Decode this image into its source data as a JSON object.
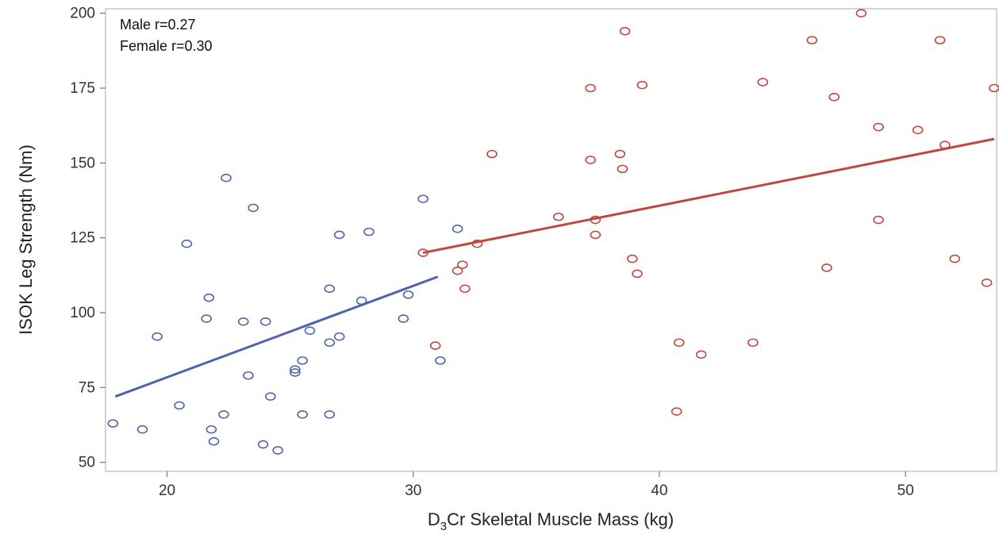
{
  "chart_data": {
    "type": "scatter",
    "title": "",
    "xlabel": "D3Cr Skeletal Muscle Mass (kg)",
    "xlabel_main": "D",
    "xlabel_sub": "3",
    "xlabel_rest": "Cr Skeletal Muscle Mass (kg)",
    "ylabel": "ISOK Leg Strength (Nm)",
    "xlim": [
      17.5,
      53.7
    ],
    "ylim": [
      47,
      201.5
    ],
    "xticks": [
      20,
      30,
      40,
      50
    ],
    "yticks": [
      50,
      75,
      100,
      125,
      150,
      175,
      200
    ],
    "grid": false,
    "annotations": [
      "Male r=0.27",
      "Female r=0.30"
    ],
    "series": [
      {
        "color": "#4f63ad",
        "fit": {
          "x": [
            17.9,
            31.0
          ],
          "y": [
            72,
            112
          ]
        },
        "points": [
          [
            17.8,
            63
          ],
          [
            19.0,
            61
          ],
          [
            19.6,
            92
          ],
          [
            20.5,
            69
          ],
          [
            20.8,
            123
          ],
          [
            21.6,
            98
          ],
          [
            21.7,
            105
          ],
          [
            21.8,
            61
          ],
          [
            21.9,
            57
          ],
          [
            22.3,
            66
          ],
          [
            22.4,
            145
          ],
          [
            23.1,
            97
          ],
          [
            23.3,
            79
          ],
          [
            23.5,
            135
          ],
          [
            23.9,
            56
          ],
          [
            24.0,
            97
          ],
          [
            24.2,
            72
          ],
          [
            24.5,
            54
          ],
          [
            25.2,
            81
          ],
          [
            25.2,
            80
          ],
          [
            25.5,
            66
          ],
          [
            25.5,
            84
          ],
          [
            25.8,
            94
          ],
          [
            26.6,
            108
          ],
          [
            26.6,
            90
          ],
          [
            26.6,
            66
          ],
          [
            27.0,
            126
          ],
          [
            27.0,
            92
          ],
          [
            27.9,
            104
          ],
          [
            28.2,
            127
          ],
          [
            29.6,
            98
          ],
          [
            29.8,
            106
          ],
          [
            30.4,
            138
          ],
          [
            31.1,
            84
          ],
          [
            31.8,
            128
          ]
        ]
      },
      {
        "color": "#c0473e",
        "fit": {
          "x": [
            30.4,
            53.6
          ],
          "y": [
            120,
            158
          ]
        },
        "points": [
          [
            30.4,
            120
          ],
          [
            30.9,
            89
          ],
          [
            31.8,
            114
          ],
          [
            32.0,
            116
          ],
          [
            32.1,
            108
          ],
          [
            32.6,
            123
          ],
          [
            33.2,
            153
          ],
          [
            35.9,
            132
          ],
          [
            37.2,
            175
          ],
          [
            37.2,
            151
          ],
          [
            37.4,
            131
          ],
          [
            37.4,
            126
          ],
          [
            38.4,
            153
          ],
          [
            38.5,
            148
          ],
          [
            38.6,
            194
          ],
          [
            38.9,
            118
          ],
          [
            39.1,
            113
          ],
          [
            39.3,
            176
          ],
          [
            40.7,
            67
          ],
          [
            40.8,
            90
          ],
          [
            41.7,
            86
          ],
          [
            43.8,
            90
          ],
          [
            44.2,
            177
          ],
          [
            46.2,
            191
          ],
          [
            46.8,
            115
          ],
          [
            47.1,
            172
          ],
          [
            48.2,
            200
          ],
          [
            48.9,
            162
          ],
          [
            48.9,
            131
          ],
          [
            50.5,
            161
          ],
          [
            51.4,
            191
          ],
          [
            51.6,
            156
          ],
          [
            52.0,
            118
          ],
          [
            53.3,
            110
          ],
          [
            53.6,
            175
          ]
        ]
      }
    ]
  }
}
